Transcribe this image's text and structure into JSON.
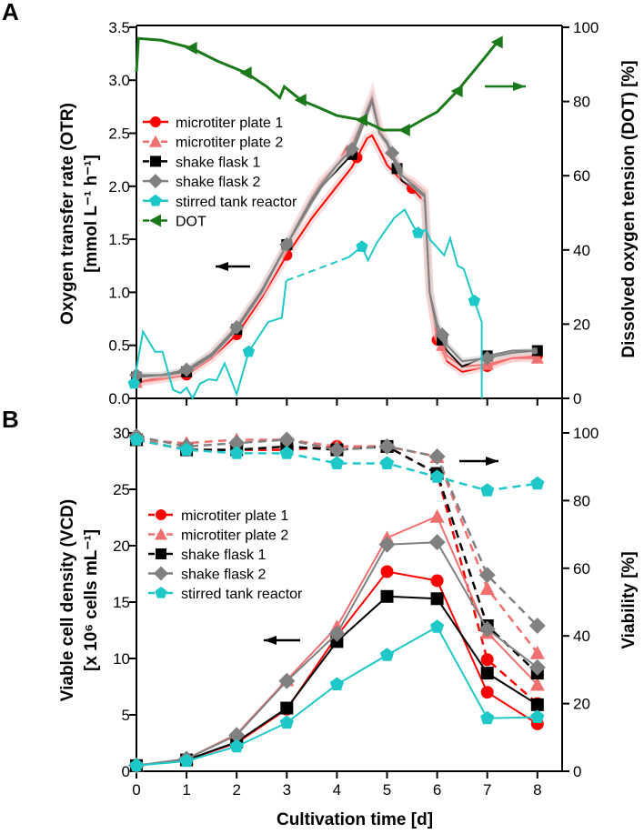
{
  "chart_data": [
    {
      "panel": "A",
      "type": "line",
      "xlabel": "Cultivation time   [d]",
      "xlim": [
        0,
        8.4
      ],
      "xticks": [
        0,
        1,
        2,
        3,
        4,
        5,
        6,
        7,
        8
      ],
      "ylabel": "Oxygen transfer rate (OTR)",
      "ylabel_unit": "[mmol L⁻¹ h⁻¹]",
      "ylim": [
        0,
        3.5
      ],
      "yticks": [
        "0.0",
        "0.5",
        "1.0",
        "1.5",
        "2.0",
        "2.5",
        "3.0",
        "3.5"
      ],
      "y2label": "Dissolved oxygen tension (DOT)   [%]",
      "y2lim": [
        0,
        100
      ],
      "y2ticks": [
        "0",
        "20",
        "40",
        "60",
        "80",
        "100"
      ],
      "legend": "upper-left",
      "series": [
        {
          "name": "microtiter plate 1",
          "color": "#ff0000",
          "marker": "circle",
          "dash": false,
          "axis": "left",
          "x": [
            0,
            0.5,
            1,
            1.5,
            2,
            2.5,
            3,
            3.5,
            3.7,
            4,
            4.3,
            4.6,
            4.7,
            4.9,
            5,
            5.3,
            5.5,
            5.75,
            5.85,
            6,
            6.2,
            6.5,
            7,
            7.5,
            8
          ],
          "y": [
            0.15,
            0.18,
            0.22,
            0.38,
            0.6,
            0.95,
            1.35,
            1.7,
            1.82,
            2.0,
            2.18,
            2.45,
            2.48,
            2.3,
            2.2,
            2.05,
            1.98,
            1.85,
            1.0,
            0.55,
            0.35,
            0.25,
            0.3,
            0.38,
            0.4
          ],
          "markers_x": [
            0,
            1,
            2,
            3,
            4.4,
            5.5,
            6,
            7,
            8
          ]
        },
        {
          "name": "microtiter plate 2",
          "color": "#f07070",
          "marker": "triangle",
          "dash": true,
          "axis": "left",
          "x": [
            0,
            0.5,
            1,
            1.5,
            2,
            2.5,
            3,
            3.5,
            3.7,
            4,
            4.3,
            4.5,
            4.7,
            4.85,
            5,
            5.3,
            5.5,
            5.75,
            5.85,
            6,
            6.2,
            6.5,
            7,
            7.5,
            8
          ],
          "y": [
            0.15,
            0.2,
            0.25,
            0.42,
            0.68,
            1.02,
            1.45,
            1.9,
            2.05,
            2.2,
            2.4,
            2.6,
            2.85,
            2.55,
            2.4,
            2.1,
            2.05,
            1.95,
            1.0,
            0.6,
            0.4,
            0.3,
            0.32,
            0.38,
            0.38
          ],
          "markers_x": [
            0,
            1,
            2,
            3,
            4.2,
            5.2,
            6.1,
            7,
            8
          ]
        },
        {
          "name": "shake flask 1",
          "color": "#000000",
          "marker": "square",
          "dash": true,
          "axis": "left",
          "x": [
            0,
            0.5,
            1,
            1.5,
            2,
            2.5,
            3,
            3.5,
            3.7,
            4,
            4.3,
            4.5,
            4.7,
            4.85,
            5,
            5.3,
            5.5,
            5.75,
            5.85,
            6,
            6.2,
            6.5,
            7,
            7.5,
            8
          ],
          "y": [
            0.2,
            0.22,
            0.25,
            0.4,
            0.65,
            1.0,
            1.45,
            1.85,
            2.0,
            2.15,
            2.3,
            2.55,
            2.8,
            2.5,
            2.4,
            2.05,
            2.0,
            1.9,
            1.0,
            0.65,
            0.45,
            0.3,
            0.4,
            0.45,
            0.45
          ],
          "markers_x": [
            0,
            1,
            2,
            3,
            4.3,
            5.2,
            6.1,
            7,
            8
          ]
        },
        {
          "name": "shake flask 2",
          "color": "#808080",
          "marker": "diamond",
          "dash": false,
          "axis": "left",
          "x": [
            0,
            0.5,
            1,
            1.5,
            2,
            2.5,
            3,
            3.5,
            3.7,
            4,
            4.3,
            4.5,
            4.7,
            4.85,
            5,
            5.3,
            5.5,
            5.75,
            5.85,
            6,
            6.2,
            6.5,
            7,
            7.5,
            8
          ],
          "y": [
            0.22,
            0.22,
            0.27,
            0.42,
            0.67,
            1.02,
            1.45,
            1.88,
            2.02,
            2.2,
            2.35,
            2.6,
            2.82,
            2.5,
            2.42,
            2.1,
            2.02,
            1.92,
            1.0,
            0.7,
            0.5,
            0.35,
            0.38,
            0.43,
            0.45
          ],
          "markers_x": [
            0,
            1,
            2,
            3,
            4.3,
            5.1,
            6.1,
            7
          ]
        },
        {
          "name": "stirred tank reactor",
          "color": "#1ec8c8",
          "marker": "pentagon",
          "dash": false,
          "axis": "left",
          "x": [
            -0.05,
            0.13,
            0.37,
            0.52,
            0.73,
            0.88,
            1.0,
            1.12,
            1.27,
            1.45,
            1.6,
            1.76,
            2.0,
            2.24,
            2.63,
            2.9,
            2.99,
            4.23,
            4.5,
            4.62,
            4.8,
            5.14,
            5.35,
            5.53,
            5.62,
            5.78,
            5.87,
            6.14,
            6.26,
            6.41,
            6.53,
            6.74,
            6.89,
            6.89
          ],
          "y": [
            0.14,
            0.63,
            0.44,
            0.44,
            0.08,
            0.05,
            0.1,
            0.0,
            0.14,
            0.18,
            0.17,
            0.33,
            0.04,
            0.44,
            0.72,
            0.76,
            1.11,
            1.33,
            1.43,
            1.3,
            1.47,
            1.7,
            1.78,
            1.62,
            1.56,
            1.59,
            1.49,
            1.35,
            1.51,
            1.25,
            1.22,
            0.92,
            0.72,
            0.0
          ],
          "dashed_segment": [
            2.99,
            4.23
          ],
          "markers_x": [
            -0.05,
            2.24,
            4.5,
            5.62,
            6.74
          ]
        },
        {
          "name": "DOT",
          "color": "#1a7a1a",
          "marker": "left-triangle",
          "dash": true,
          "axis": "right",
          "x": [
            0,
            0.04,
            0.5,
            1.1,
            1.6,
            2.19,
            2.6,
            2.86,
            2.95,
            3.28,
            3.7,
            4.0,
            4.5,
            4.92,
            5.35,
            5.7,
            6.0,
            6.4,
            6.9,
            7.2
          ],
          "y": [
            88,
            97,
            96.5,
            94.4,
            91,
            87.7,
            84,
            81,
            84,
            80.4,
            78,
            76.2,
            75,
            72.3,
            72.3,
            75,
            77.2,
            82.8,
            91,
            96
          ],
          "markers_x": [
            1.1,
            2.19,
            3.28,
            4.5,
            5.35,
            6.4,
            7.2
          ]
        }
      ]
    },
    {
      "panel": "B",
      "type": "line",
      "xlabel": "Cultivation time   [d]",
      "xlim": [
        0,
        8.4
      ],
      "xticks": [
        0,
        1,
        2,
        3,
        4,
        5,
        6,
        7,
        8
      ],
      "ylabel": "Viable cell density (VCD)",
      "ylabel_unit": "[x 10⁶ cells mL⁻¹]",
      "ylim": [
        0,
        30
      ],
      "yticks": [
        "0",
        "5",
        "10",
        "15",
        "20",
        "25",
        "30"
      ],
      "y2label": "Viability   [%]",
      "y2lim": [
        0,
        100
      ],
      "y2ticks": [
        "0",
        "20",
        "40",
        "60",
        "80",
        "100"
      ],
      "legend": "center-left",
      "x": [
        0,
        1,
        2,
        3,
        4,
        5,
        6,
        7,
        8
      ],
      "series": [
        {
          "name": "microtiter plate 1",
          "color": "#ff0000",
          "marker": "circle",
          "vcd": [
            0.5,
            1.0,
            2.5,
            5.5,
            12.0,
            17.7,
            16.9,
            7.0,
            4.2
          ],
          "viability": [
            98,
            95,
            95,
            95,
            96,
            96,
            88,
            33,
            20
          ]
        },
        {
          "name": "microtiter plate 2",
          "color": "#f07070",
          "marker": "triangle",
          "vcd": [
            0.5,
            1.1,
            3.3,
            8.1,
            12.8,
            20.7,
            22.6,
            12.3,
            7.7
          ],
          "viability": [
            98,
            97,
            98,
            98,
            96,
            96,
            93,
            54,
            35
          ]
        },
        {
          "name": "shake flask 1",
          "color": "#000000",
          "marker": "square",
          "vcd": [
            0.5,
            1.0,
            2.6,
            5.6,
            11.5,
            15.5,
            15.3,
            8.7,
            5.9
          ],
          "viability": [
            98,
            95,
            95,
            96,
            95,
            96,
            88,
            43,
            29
          ]
        },
        {
          "name": "shake flask 2",
          "color": "#808080",
          "marker": "diamond",
          "vcd": [
            0.5,
            1.1,
            3.2,
            8.0,
            12.2,
            20.1,
            20.3,
            12.6,
            9.2
          ],
          "viability": [
            99,
            96,
            97,
            98,
            95,
            96,
            93,
            58,
            43
          ]
        },
        {
          "name": "stirred tank reactor",
          "color": "#1ec8c8",
          "marker": "pentagon",
          "vcd": [
            0.5,
            0.9,
            2.2,
            4.3,
            7.7,
            10.3,
            12.8,
            4.7,
            4.8
          ],
          "viability": [
            98,
            95,
            94,
            94,
            91,
            91,
            87,
            83,
            85
          ]
        }
      ]
    }
  ],
  "labels": {
    "panel_a": "A",
    "panel_b": "B"
  }
}
